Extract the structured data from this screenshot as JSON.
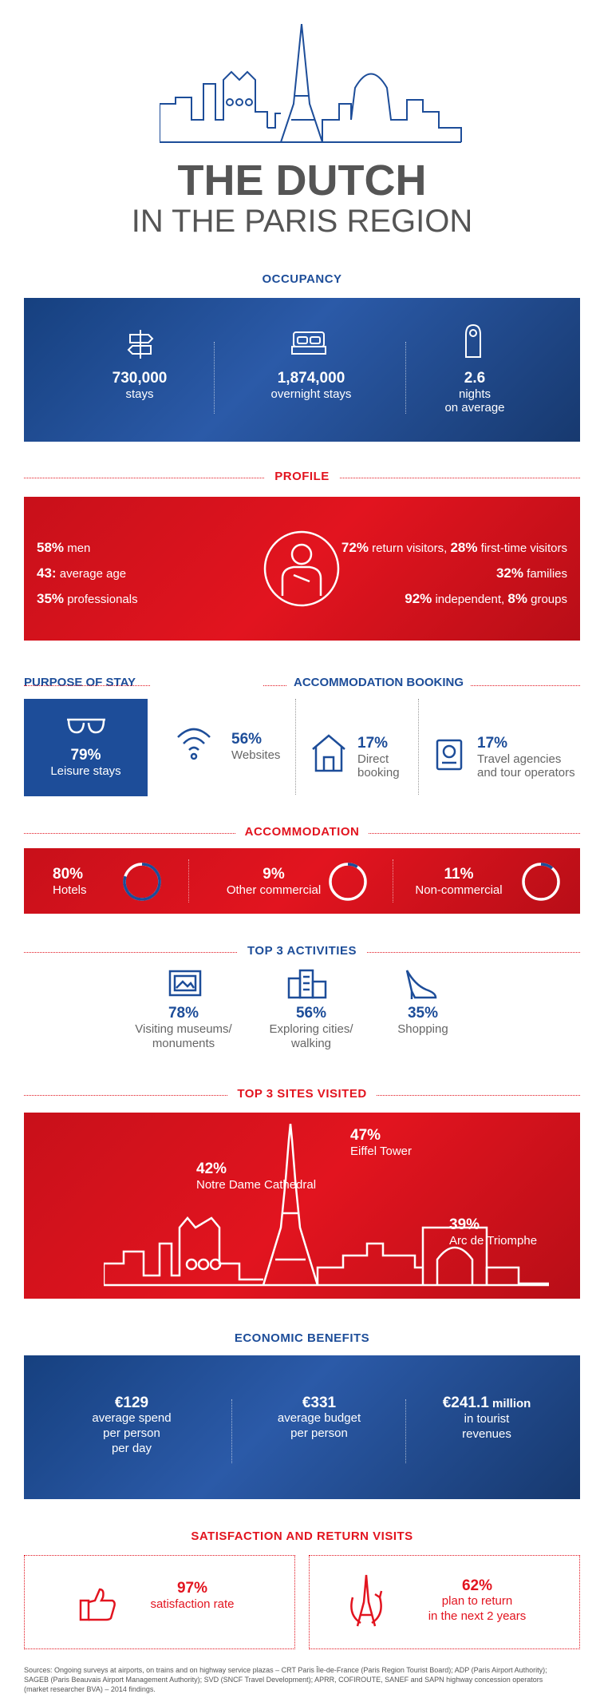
{
  "header": {
    "title_line1": "THE DUTCH",
    "title_line2": "IN THE PARIS REGION"
  },
  "occupancy": {
    "title": "OCCUPANCY",
    "items": [
      {
        "value": "730,000",
        "label": "stays",
        "icon": "signpost-icon"
      },
      {
        "value": "1,874,000",
        "label": "overnight stays",
        "icon": "bed-icon"
      },
      {
        "value": "2.6",
        "label": "nights",
        "label2": "on average",
        "icon": "door-hanger-icon"
      }
    ]
  },
  "profile": {
    "title": "PROFILE",
    "left": [
      {
        "value": "58%",
        "label": " men"
      },
      {
        "value": "43:",
        "label": " average age"
      },
      {
        "value": "35%",
        "label": " professionals"
      }
    ],
    "right": [
      {
        "v1": "72%",
        "l1": " return visitors, ",
        "v2": "28%",
        "l2": " first-time visitors"
      },
      {
        "v1": "32%",
        "l1": " families",
        "v2": "",
        "l2": ""
      },
      {
        "v1": "92%",
        "l1": " independent, ",
        "v2": "8%",
        "l2": " groups"
      }
    ]
  },
  "purpose": {
    "title": "PURPOSE OF STAY",
    "value": "79%",
    "label": "Leisure stays"
  },
  "booking": {
    "title": "ACCOMMODATION BOOKING",
    "items": [
      {
        "value": "56%",
        "label1": "Websites",
        "label2": ""
      },
      {
        "value": "17%",
        "label1": "Direct",
        "label2": "booking"
      },
      {
        "value": "17%",
        "label1": "Travel agencies",
        "label2": "and tour operators"
      }
    ]
  },
  "accommodation": {
    "title": "ACCOMMODATION",
    "items": [
      {
        "value": "80%",
        "label": "Hotels",
        "fraction": 0.8
      },
      {
        "value": "9%",
        "label": "Other commercial",
        "fraction": 0.09
      },
      {
        "value": "11%",
        "label": "Non-commercial",
        "fraction": 0.11
      }
    ]
  },
  "activities": {
    "title": "TOP 3 ACTIVITIES",
    "items": [
      {
        "value": "78%",
        "label1": "Visiting museums/",
        "label2": "monuments"
      },
      {
        "value": "56%",
        "label1": "Exploring cities/",
        "label2": "walking"
      },
      {
        "value": "35%",
        "label1": "Shopping",
        "label2": ""
      }
    ]
  },
  "sites": {
    "title": "TOP 3 SITES VISITED",
    "items": [
      {
        "value": "47%",
        "label": "Eiffel Tower"
      },
      {
        "value": "42%",
        "label": "Notre Dame Cathedral"
      },
      {
        "value": "39%",
        "label": "Arc de Triomphe"
      }
    ]
  },
  "economic": {
    "title": "ECONOMIC BENEFITS",
    "items": [
      {
        "value": "€129",
        "suffix": "",
        "label1": "average spend",
        "label2": "per person",
        "label3": "per day"
      },
      {
        "value": "€331",
        "suffix": "",
        "label1": "average budget",
        "label2": "per person",
        "label3": ""
      },
      {
        "value": "€241.1",
        "suffix": " million",
        "label1": "in tourist",
        "label2": "revenues",
        "label3": ""
      }
    ]
  },
  "satisfaction": {
    "title": "SATISFACTION AND RETURN VISITS",
    "items": [
      {
        "value": "97%",
        "label1": "satisfaction rate",
        "label2": ""
      },
      {
        "value": "62%",
        "label1": "plan to return",
        "label2": "in the next 2 years"
      }
    ]
  },
  "sources": {
    "line1": "Sources: Ongoing surveys at airports, on trains and on highway service plazas – CRT Paris Île-de-France (Paris Region Tourist Board); ADP (Paris Airport Authority);",
    "line2": "SAGEB (Paris Beauvais Airport Management Authority); SVD (SNCF Travel Development); APRR, COFIROUTE, SANEF and SAPN highway concession operators",
    "line3": "(market researcher BVA) – 2014 findings."
  },
  "colors": {
    "blue": "#1d4d99",
    "red": "#e2141f"
  }
}
